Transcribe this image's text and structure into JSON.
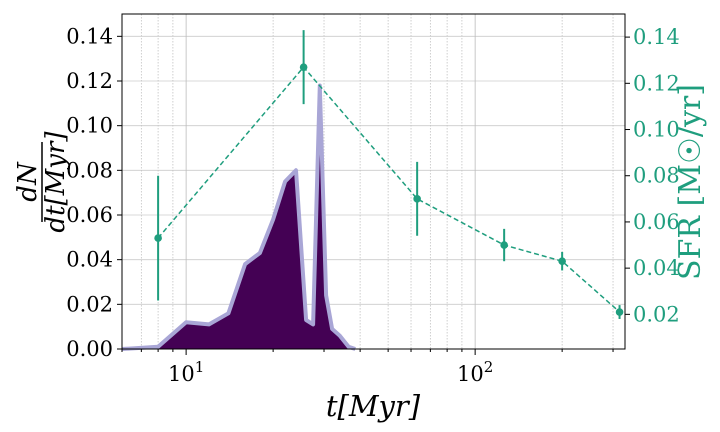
{
  "chart_data": {
    "type": "area",
    "x_scale": "log",
    "xlim": [
      6.0,
      330
    ],
    "ylim": [
      0,
      0.15
    ],
    "y2lim": [
      0.005,
      0.15
    ],
    "grid": true,
    "xlabel": "t[Myr]",
    "ylabel_numerator": "dN",
    "ylabel_denominator": "dt[Myr]",
    "y2label": "SFR [M☉/yr]",
    "x_ticks": [
      {
        "value": 10,
        "base": "10",
        "exp": "1"
      },
      {
        "value": 100,
        "base": "10",
        "exp": "2"
      }
    ],
    "y_ticks": [
      "0.00",
      "0.02",
      "0.04",
      "0.06",
      "0.08",
      "0.10",
      "0.12",
      "0.14"
    ],
    "y2_ticks": [
      "0.02",
      "0.04",
      "0.06",
      "0.08",
      "0.10",
      "0.12",
      "0.14"
    ],
    "series": [
      {
        "kind": "area",
        "color": "#440154",
        "edge_color": "#a9a6d6",
        "x": [
          6.0,
          8.0,
          10.0,
          12.0,
          14.0,
          16.0,
          18.0,
          20.0,
          22.0,
          24.0,
          26.0,
          27.5,
          29.0,
          30.5,
          32.0,
          34.0,
          36.5,
          38.5
        ],
        "y": [
          0.0,
          0.001,
          0.012,
          0.011,
          0.016,
          0.038,
          0.043,
          0.058,
          0.075,
          0.08,
          0.013,
          0.011,
          0.118,
          0.024,
          0.009,
          0.006,
          0.001,
          0.0
        ]
      },
      {
        "kind": "errorbar-line",
        "color": "#1f9e7e",
        "x": [
          8.0,
          25.5,
          63,
          126,
          200,
          316
        ],
        "y": [
          0.053,
          0.127,
          0.07,
          0.05,
          0.043,
          0.021
        ],
        "yerr": [
          0.027,
          0.016,
          0.016,
          0.007,
          0.004,
          0.003
        ]
      }
    ]
  }
}
